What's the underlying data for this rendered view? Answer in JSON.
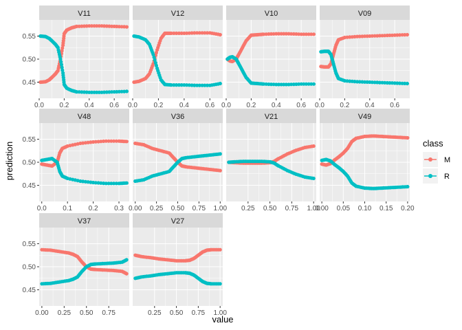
{
  "chart_data": {
    "type": "line",
    "xlabel": "value",
    "ylabel": "prediction",
    "legend": {
      "title": "class",
      "placement": "right",
      "items": [
        {
          "label": "M",
          "color": "#F8766D"
        },
        {
          "label": "R",
          "color": "#00BFC4"
        }
      ]
    },
    "ylim": [
      0.415,
      0.585
    ],
    "yticks": [
      0.45,
      0.5,
      0.55
    ],
    "ytick_labels": [
      "0.45",
      "0.50",
      "0.55"
    ],
    "grid": true,
    "panels": [
      {
        "name": "V11",
        "xlim": [
          0,
          0.72
        ],
        "xticks": [
          0,
          0.2,
          0.4,
          0.6
        ],
        "xtick_labels": [
          "0.0",
          "0.2",
          "0.4",
          "0.6"
        ],
        "series": [
          {
            "name": "M",
            "x": [
              0.01,
              0.05,
              0.08,
              0.1,
              0.13,
              0.15,
              0.17,
              0.19,
              0.2,
              0.22,
              0.26,
              0.3,
              0.4,
              0.5,
              0.6,
              0.7
            ],
            "y": [
              0.45,
              0.451,
              0.455,
              0.46,
              0.468,
              0.475,
              0.5,
              0.53,
              0.555,
              0.563,
              0.568,
              0.571,
              0.572,
              0.572,
              0.571,
              0.57
            ]
          },
          {
            "name": "R",
            "x": [
              0.01,
              0.05,
              0.08,
              0.1,
              0.13,
              0.15,
              0.17,
              0.19,
              0.2,
              0.22,
              0.26,
              0.3,
              0.4,
              0.5,
              0.6,
              0.7
            ],
            "y": [
              0.55,
              0.549,
              0.545,
              0.54,
              0.532,
              0.525,
              0.5,
              0.47,
              0.445,
              0.437,
              0.432,
              0.429,
              0.428,
              0.428,
              0.429,
              0.43
            ]
          }
        ]
      },
      {
        "name": "V12",
        "xlim": [
          0,
          0.7
        ],
        "xticks": [
          0,
          0.2,
          0.4,
          0.6
        ],
        "xtick_labels": [
          "0.0",
          "0.2",
          "0.4",
          "0.6"
        ],
        "series": [
          {
            "name": "M",
            "x": [
              0.01,
              0.05,
              0.1,
              0.13,
              0.16,
              0.19,
              0.22,
              0.25,
              0.3,
              0.4,
              0.5,
              0.6,
              0.68
            ],
            "y": [
              0.45,
              0.452,
              0.458,
              0.468,
              0.49,
              0.52,
              0.545,
              0.556,
              0.556,
              0.556,
              0.557,
              0.557,
              0.553
            ]
          },
          {
            "name": "R",
            "x": [
              0.01,
              0.05,
              0.1,
              0.13,
              0.16,
              0.19,
              0.22,
              0.25,
              0.3,
              0.4,
              0.5,
              0.6,
              0.68
            ],
            "y": [
              0.55,
              0.548,
              0.542,
              0.532,
              0.51,
              0.48,
              0.455,
              0.445,
              0.444,
              0.444,
              0.443,
              0.443,
              0.447
            ]
          }
        ]
      },
      {
        "name": "V10",
        "xlim": [
          0,
          0.72
        ],
        "xticks": [
          0,
          0.2,
          0.4,
          0.6
        ],
        "xtick_labels": [
          "0.0",
          "0.2",
          "0.4",
          "0.6"
        ],
        "series": [
          {
            "name": "M",
            "x": [
              0.01,
              0.03,
              0.05,
              0.08,
              0.1,
              0.13,
              0.16,
              0.2,
              0.25,
              0.3,
              0.4,
              0.5,
              0.6,
              0.7
            ],
            "y": [
              0.5,
              0.496,
              0.495,
              0.5,
              0.51,
              0.525,
              0.54,
              0.552,
              0.553,
              0.554,
              0.555,
              0.555,
              0.554,
              0.554
            ]
          },
          {
            "name": "R",
            "x": [
              0.01,
              0.03,
              0.05,
              0.08,
              0.1,
              0.13,
              0.16,
              0.2,
              0.25,
              0.3,
              0.4,
              0.5,
              0.6,
              0.7
            ],
            "y": [
              0.5,
              0.504,
              0.505,
              0.5,
              0.49,
              0.475,
              0.46,
              0.448,
              0.447,
              0.446,
              0.445,
              0.445,
              0.446,
              0.446
            ]
          }
        ]
      },
      {
        "name": "V09",
        "xlim": [
          0,
          0.72
        ],
        "xticks": [
          0,
          0.2,
          0.4,
          0.6
        ],
        "xtick_labels": [
          "0.0",
          "0.2",
          "0.4",
          "0.6"
        ],
        "series": [
          {
            "name": "M",
            "x": [
              0.01,
              0.04,
              0.07,
              0.09,
              0.11,
              0.13,
              0.15,
              0.2,
              0.3,
              0.4,
              0.5,
              0.6,
              0.7
            ],
            "y": [
              0.484,
              0.483,
              0.483,
              0.49,
              0.51,
              0.53,
              0.542,
              0.547,
              0.549,
              0.55,
              0.551,
              0.552,
              0.553
            ]
          },
          {
            "name": "R",
            "x": [
              0.01,
              0.04,
              0.07,
              0.09,
              0.11,
              0.13,
              0.15,
              0.2,
              0.3,
              0.4,
              0.5,
              0.6,
              0.7
            ],
            "y": [
              0.516,
              0.517,
              0.517,
              0.51,
              0.49,
              0.47,
              0.458,
              0.453,
              0.451,
              0.45,
              0.449,
              0.448,
              0.447
            ]
          }
        ]
      },
      {
        "name": "V48",
        "xlim": [
          -0.01,
          0.34
        ],
        "xticks": [
          0,
          0.1,
          0.2,
          0.3
        ],
        "xtick_labels": [
          "0.0",
          "0.1",
          "0.2",
          "0.3"
        ],
        "series": [
          {
            "name": "M",
            "x": [
              0.0,
              0.02,
              0.04,
              0.06,
              0.07,
              0.08,
              0.1,
              0.15,
              0.2,
              0.25,
              0.3,
              0.33
            ],
            "y": [
              0.496,
              0.494,
              0.492,
              0.5,
              0.52,
              0.53,
              0.535,
              0.541,
              0.544,
              0.546,
              0.546,
              0.545
            ]
          },
          {
            "name": "R",
            "x": [
              0.0,
              0.02,
              0.04,
              0.06,
              0.07,
              0.08,
              0.1,
              0.15,
              0.2,
              0.25,
              0.3,
              0.33
            ],
            "y": [
              0.504,
              0.506,
              0.508,
              0.5,
              0.48,
              0.47,
              0.465,
              0.459,
              0.456,
              0.454,
              0.454,
              0.455
            ]
          }
        ]
      },
      {
        "name": "V36",
        "xlim": [
          -0.03,
          1.03
        ],
        "xticks": [
          0,
          0.25,
          0.5,
          0.75,
          1.0
        ],
        "xtick_labels": [
          "0.00",
          "0.25",
          "0.50",
          "0.75",
          "1.00"
        ],
        "series": [
          {
            "name": "M",
            "x": [
              0.0,
              0.1,
              0.2,
              0.3,
              0.4,
              0.45,
              0.5,
              0.55,
              0.6,
              0.7,
              0.8,
              0.9,
              1.0
            ],
            "y": [
              0.541,
              0.538,
              0.53,
              0.525,
              0.52,
              0.51,
              0.5,
              0.492,
              0.49,
              0.488,
              0.486,
              0.484,
              0.482
            ]
          },
          {
            "name": "R",
            "x": [
              0.0,
              0.1,
              0.2,
              0.3,
              0.4,
              0.45,
              0.5,
              0.55,
              0.6,
              0.7,
              0.8,
              0.9,
              1.0
            ],
            "y": [
              0.459,
              0.462,
              0.47,
              0.475,
              0.48,
              0.49,
              0.5,
              0.508,
              0.51,
              0.512,
              0.514,
              0.516,
              0.518
            ]
          }
        ]
      },
      {
        "name": "V21",
        "xlim": [
          0.0,
          1.03
        ],
        "xticks": [
          0.25,
          0.5,
          0.75,
          1.0
        ],
        "xtick_labels": [
          "0.25",
          "0.50",
          "0.75",
          "1.00"
        ],
        "series": [
          {
            "name": "M",
            "x": [
              0.03,
              0.1,
              0.2,
              0.3,
              0.4,
              0.5,
              0.55,
              0.6,
              0.7,
              0.8,
              0.9,
              1.0
            ],
            "y": [
              0.5,
              0.499,
              0.498,
              0.498,
              0.498,
              0.499,
              0.502,
              0.508,
              0.518,
              0.526,
              0.532,
              0.535
            ]
          },
          {
            "name": "R",
            "x": [
              0.03,
              0.1,
              0.2,
              0.3,
              0.4,
              0.5,
              0.55,
              0.6,
              0.7,
              0.8,
              0.9,
              1.0
            ],
            "y": [
              0.5,
              0.501,
              0.502,
              0.502,
              0.502,
              0.501,
              0.498,
              0.492,
              0.482,
              0.474,
              0.468,
              0.465
            ]
          }
        ]
      },
      {
        "name": "V49",
        "xlim": [
          -0.005,
          0.205
        ],
        "xticks": [
          0,
          0.05,
          0.1,
          0.15,
          0.2
        ],
        "xtick_labels": [
          "0.00",
          "0.05",
          "0.10",
          "0.15",
          "0.20"
        ],
        "series": [
          {
            "name": "M",
            "x": [
              0.0,
              0.01,
              0.02,
              0.03,
              0.04,
              0.05,
              0.06,
              0.07,
              0.08,
              0.1,
              0.12,
              0.14,
              0.16,
              0.18,
              0.2
            ],
            "y": [
              0.496,
              0.494,
              0.497,
              0.505,
              0.512,
              0.52,
              0.53,
              0.545,
              0.552,
              0.556,
              0.557,
              0.556,
              0.555,
              0.554,
              0.553
            ]
          },
          {
            "name": "R",
            "x": [
              0.0,
              0.01,
              0.02,
              0.03,
              0.04,
              0.05,
              0.06,
              0.07,
              0.08,
              0.1,
              0.12,
              0.14,
              0.16,
              0.18,
              0.2
            ],
            "y": [
              0.504,
              0.506,
              0.503,
              0.495,
              0.488,
              0.48,
              0.47,
              0.455,
              0.448,
              0.444,
              0.443,
              0.444,
              0.445,
              0.446,
              0.447
            ]
          }
        ]
      },
      {
        "name": "V37",
        "xlim": [
          -0.03,
          0.98
        ],
        "xticks": [
          0,
          0.25,
          0.5,
          0.75
        ],
        "xtick_labels": [
          "0.00",
          "0.25",
          "0.50",
          "0.75"
        ],
        "series": [
          {
            "name": "M",
            "x": [
              0.0,
              0.1,
              0.2,
              0.3,
              0.35,
              0.4,
              0.45,
              0.5,
              0.55,
              0.6,
              0.7,
              0.8,
              0.9,
              0.95
            ],
            "y": [
              0.537,
              0.536,
              0.533,
              0.53,
              0.527,
              0.522,
              0.51,
              0.5,
              0.495,
              0.494,
              0.493,
              0.492,
              0.49,
              0.485
            ]
          },
          {
            "name": "R",
            "x": [
              0.0,
              0.1,
              0.2,
              0.3,
              0.35,
              0.4,
              0.45,
              0.5,
              0.55,
              0.6,
              0.7,
              0.8,
              0.9,
              0.95
            ],
            "y": [
              0.463,
              0.464,
              0.467,
              0.47,
              0.473,
              0.478,
              0.49,
              0.5,
              0.505,
              0.506,
              0.507,
              0.508,
              0.51,
              0.515
            ]
          }
        ]
      },
      {
        "name": "V27",
        "xlim": [
          0.0,
          1.03
        ],
        "xticks": [
          0.25,
          0.5,
          0.75,
          1.0
        ],
        "xtick_labels": [
          "0.25",
          "0.50",
          "0.75",
          "1.00"
        ],
        "series": [
          {
            "name": "M",
            "x": [
              0.03,
              0.1,
              0.2,
              0.3,
              0.4,
              0.5,
              0.6,
              0.65,
              0.7,
              0.75,
              0.8,
              0.85,
              0.9,
              1.0
            ],
            "y": [
              0.525,
              0.522,
              0.52,
              0.517,
              0.515,
              0.513,
              0.513,
              0.514,
              0.518,
              0.525,
              0.532,
              0.536,
              0.537,
              0.537
            ]
          },
          {
            "name": "R",
            "x": [
              0.03,
              0.1,
              0.2,
              0.3,
              0.4,
              0.5,
              0.6,
              0.65,
              0.7,
              0.75,
              0.8,
              0.85,
              0.9,
              1.0
            ],
            "y": [
              0.475,
              0.478,
              0.48,
              0.483,
              0.485,
              0.487,
              0.487,
              0.486,
              0.482,
              0.475,
              0.468,
              0.464,
              0.463,
              0.463
            ]
          }
        ]
      }
    ]
  }
}
